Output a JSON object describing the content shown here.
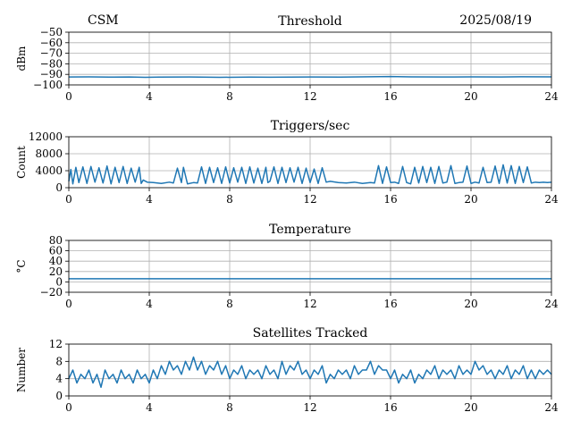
{
  "header": {
    "left": "CSM",
    "right": "2025/08/19"
  },
  "chart_data": [
    {
      "type": "line",
      "title": "Threshold",
      "xlabel": "",
      "ylabel": "dBm",
      "xlim": [
        0,
        24
      ],
      "ylim": [
        -100,
        -50
      ],
      "xticks": [
        0,
        4,
        8,
        12,
        16,
        20,
        24
      ],
      "yticks": [
        -100,
        -90,
        -80,
        -70,
        -60,
        -50
      ],
      "ytick_labels": [
        "−100",
        "−90",
        "−80",
        "−70",
        "−60",
        "−50"
      ],
      "grid": true,
      "series": [
        {
          "x": [
            0,
            1,
            2,
            3,
            3.8,
            4.5,
            6,
            7.5,
            9,
            10,
            12,
            13.5,
            15,
            16,
            17,
            18.5,
            20,
            21.5,
            22.5,
            24
          ],
          "y": [
            -92.5,
            -92.4,
            -92.6,
            -92.5,
            -92.8,
            -92.6,
            -92.5,
            -92.8,
            -92.6,
            -92.7,
            -92.5,
            -92.6,
            -92.3,
            -92.1,
            -92.4,
            -92.5,
            -92.4,
            -92.5,
            -92.3,
            -92.4
          ]
        }
      ]
    },
    {
      "type": "line",
      "title": "Triggers/sec",
      "xlabel": "",
      "ylabel": "Count",
      "xlim": [
        0,
        24
      ],
      "ylim": [
        0,
        12000
      ],
      "xticks": [
        0,
        4,
        8,
        12,
        16,
        20,
        24
      ],
      "yticks": [
        0,
        4000,
        8000,
        12000
      ],
      "grid": true,
      "series": [
        {
          "x": [
            0,
            0.1,
            0.2,
            0.35,
            0.5,
            0.7,
            0.9,
            1.1,
            1.3,
            1.5,
            1.7,
            1.9,
            2.1,
            2.3,
            2.5,
            2.7,
            2.9,
            3.1,
            3.3,
            3.5,
            3.6,
            3.7,
            3.9,
            4.2,
            4.6,
            5.0,
            5.2,
            5.4,
            5.6,
            5.7,
            5.9,
            6.2,
            6.4,
            6.6,
            6.8,
            7.0,
            7.2,
            7.4,
            7.6,
            7.8,
            8.0,
            8.2,
            8.4,
            8.6,
            8.8,
            9.0,
            9.2,
            9.4,
            9.6,
            9.8,
            9.9,
            10.0,
            10.2,
            10.4,
            10.6,
            10.8,
            11.0,
            11.2,
            11.4,
            11.6,
            11.8,
            12.0,
            12.2,
            12.4,
            12.6,
            12.8,
            13.0,
            13.4,
            13.8,
            14.2,
            14.6,
            15.0,
            15.2,
            15.4,
            15.6,
            15.8,
            16.0,
            16.2,
            16.4,
            16.6,
            16.8,
            17.0,
            17.2,
            17.4,
            17.6,
            17.8,
            18.0,
            18.2,
            18.4,
            18.6,
            18.8,
            19.0,
            19.2,
            19.4,
            19.6,
            19.8,
            20.0,
            20.2,
            20.4,
            20.6,
            20.8,
            21.0,
            21.2,
            21.4,
            21.6,
            21.8,
            22.0,
            22.2,
            22.4,
            22.6,
            22.8,
            23.0,
            23.2,
            23.4,
            23.6,
            23.8,
            24.0
          ],
          "y": [
            1500,
            4300,
            900,
            4800,
            1200,
            4900,
            1000,
            5000,
            1300,
            4700,
            1100,
            5100,
            900,
            4800,
            1200,
            5000,
            1000,
            4600,
            1300,
            4800,
            1000,
            1800,
            1300,
            1200,
            1000,
            1300,
            1100,
            4600,
            1200,
            4800,
            900,
            1200,
            1100,
            4900,
            1000,
            4800,
            1200,
            4700,
            1000,
            4900,
            1100,
            4700,
            1300,
            4800,
            1000,
            4900,
            1100,
            4600,
            1000,
            4800,
            1200,
            1500,
            4900,
            1000,
            4800,
            1200,
            4700,
            1300,
            4800,
            1000,
            4600,
            1200,
            4400,
            1000,
            4700,
            1300,
            1500,
            1200,
            1100,
            1300,
            1000,
            1200,
            1100,
            5200,
            1000,
            4900,
            1200,
            1300,
            1000,
            5000,
            1200,
            900,
            4800,
            1100,
            5000,
            1200,
            4800,
            1000,
            5000,
            1100,
            1300,
            5200,
            1000,
            1200,
            1300,
            5100,
            1000,
            1300,
            1100,
            4800,
            1200,
            1300,
            5100,
            1000,
            5400,
            1100,
            5200,
            1000,
            5000,
            1200,
            4900,
            1100,
            1300,
            1200,
            1300,
            1200,
            1300
          ]
        }
      ]
    },
    {
      "type": "line",
      "title": "Temperature",
      "xlabel": "",
      "ylabel": "°C",
      "xlim": [
        0,
        24
      ],
      "ylim": [
        -20,
        80
      ],
      "xticks": [
        0,
        4,
        8,
        12,
        16,
        20,
        24
      ],
      "yticks": [
        -20,
        0,
        20,
        40,
        60,
        80
      ],
      "ytick_labels": [
        "−20",
        "0",
        "20",
        "40",
        "60",
        "80"
      ],
      "grid": true,
      "series": [
        {
          "x": [
            0,
            4,
            8,
            12,
            16,
            20,
            24
          ],
          "y": [
            6,
            6,
            6,
            6,
            6,
            6,
            6
          ]
        }
      ]
    },
    {
      "type": "line",
      "title": "Satellites Tracked",
      "xlabel": "",
      "ylabel": "Number",
      "xlim": [
        0,
        24
      ],
      "ylim": [
        0,
        12
      ],
      "xticks": [
        0,
        4,
        8,
        12,
        16,
        20,
        24
      ],
      "yticks": [
        0,
        4,
        8,
        12
      ],
      "grid": true,
      "series": [
        {
          "x": [
            0,
            0.2,
            0.4,
            0.6,
            0.8,
            1.0,
            1.2,
            1.4,
            1.6,
            1.8,
            2.0,
            2.2,
            2.4,
            2.6,
            2.8,
            3.0,
            3.2,
            3.4,
            3.6,
            3.8,
            4.0,
            4.2,
            4.4,
            4.6,
            4.8,
            5.0,
            5.2,
            5.4,
            5.6,
            5.8,
            6.0,
            6.2,
            6.4,
            6.6,
            6.8,
            7.0,
            7.2,
            7.4,
            7.6,
            7.8,
            8.0,
            8.2,
            8.4,
            8.6,
            8.8,
            9.0,
            9.2,
            9.4,
            9.6,
            9.8,
            10.0,
            10.2,
            10.4,
            10.6,
            10.8,
            11.0,
            11.2,
            11.4,
            11.6,
            11.8,
            12.0,
            12.2,
            12.4,
            12.6,
            12.8,
            13.0,
            13.2,
            13.4,
            13.6,
            13.8,
            14.0,
            14.2,
            14.4,
            14.6,
            14.8,
            15.0,
            15.2,
            15.4,
            15.6,
            15.8,
            16.0,
            16.2,
            16.4,
            16.6,
            16.8,
            17.0,
            17.2,
            17.4,
            17.6,
            17.8,
            18.0,
            18.2,
            18.4,
            18.6,
            18.8,
            19.0,
            19.2,
            19.4,
            19.6,
            19.8,
            20.0,
            20.2,
            20.4,
            20.6,
            20.8,
            21.0,
            21.2,
            21.4,
            21.6,
            21.8,
            22.0,
            22.2,
            22.4,
            22.6,
            22.8,
            23.0,
            23.2,
            23.4,
            23.6,
            23.8,
            24.0
          ],
          "y": [
            4,
            6,
            3,
            5,
            4,
            6,
            3,
            5,
            2,
            6,
            4,
            5,
            3,
            6,
            4,
            5,
            3,
            6,
            4,
            5,
            3,
            6,
            4,
            7,
            5,
            8,
            6,
            7,
            5,
            8,
            6,
            9,
            6,
            8,
            5,
            7,
            6,
            8,
            5,
            7,
            4,
            6,
            5,
            7,
            4,
            6,
            5,
            6,
            4,
            7,
            5,
            6,
            4,
            8,
            5,
            7,
            6,
            8,
            5,
            6,
            4,
            6,
            5,
            7,
            3,
            5,
            4,
            6,
            5,
            6,
            4,
            7,
            5,
            6,
            6,
            8,
            5,
            7,
            6,
            6,
            4,
            6,
            3,
            5,
            4,
            6,
            3,
            5,
            4,
            6,
            5,
            7,
            4,
            6,
            5,
            6,
            4,
            7,
            5,
            6,
            5,
            8,
            6,
            7,
            5,
            6,
            4,
            6,
            5,
            7,
            4,
            6,
            5,
            7,
            4,
            6,
            4,
            6,
            5,
            6,
            5
          ]
        }
      ]
    }
  ]
}
